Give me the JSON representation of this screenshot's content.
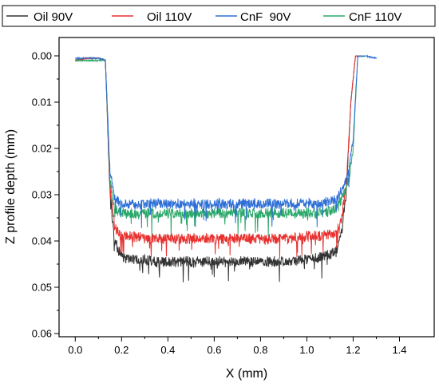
{
  "chart_data": {
    "type": "line",
    "xlabel": "X (mm)",
    "ylabel": "Z profile depth (mm)",
    "xlim": [
      -0.07,
      1.55
    ],
    "ylim": [
      0.0,
      0.06
    ],
    "y_inverted": true,
    "x_ticks": [
      "0.0",
      "0.2",
      "0.4",
      "0.6",
      "0.8",
      "1.0",
      "1.2",
      "1.4"
    ],
    "x_tick_values": [
      0.0,
      0.2,
      0.4,
      0.6,
      0.8,
      1.0,
      1.2,
      1.4
    ],
    "y_ticks": [
      "0.00",
      "0.01",
      "0.02",
      "0.03",
      "0.04",
      "0.05",
      "0.06"
    ],
    "y_tick_values": [
      0.0,
      0.01,
      0.02,
      0.03,
      0.04,
      0.05,
      0.06
    ],
    "legend_position": "top",
    "series": [
      {
        "name": "Oil 90V",
        "color": "#333333",
        "x": [
          0.0,
          0.05,
          0.1,
          0.13,
          0.15,
          0.17,
          0.2,
          0.25,
          0.3,
          0.35,
          0.4,
          0.5,
          0.6,
          0.7,
          0.8,
          0.9,
          1.0,
          1.05,
          1.1,
          1.13,
          1.15,
          1.17,
          1.19,
          1.21,
          1.23
        ],
        "y": [
          0.001,
          0.0005,
          0.0005,
          0.001,
          0.03,
          0.04,
          0.0435,
          0.044,
          0.044,
          0.0445,
          0.0445,
          0.0445,
          0.0445,
          0.0445,
          0.0445,
          0.0445,
          0.044,
          0.0435,
          0.043,
          0.042,
          0.038,
          0.03,
          0.01,
          0.0,
          0.0
        ]
      },
      {
        "name": "Oil 110V",
        "color": "#e8312f",
        "x": [
          0.0,
          0.05,
          0.1,
          0.13,
          0.15,
          0.17,
          0.2,
          0.25,
          0.3,
          0.35,
          0.4,
          0.5,
          0.6,
          0.7,
          0.8,
          0.9,
          1.0,
          1.05,
          1.1,
          1.13,
          1.15,
          1.17,
          1.19,
          1.21,
          1.23
        ],
        "y": [
          0.001,
          0.0005,
          0.0005,
          0.001,
          0.028,
          0.037,
          0.039,
          0.039,
          0.0395,
          0.0395,
          0.0395,
          0.0395,
          0.0395,
          0.0395,
          0.0395,
          0.0395,
          0.039,
          0.039,
          0.0385,
          0.038,
          0.035,
          0.028,
          0.01,
          0.0,
          0.0
        ]
      },
      {
        "name": "CnF  90V",
        "color": "#2e6fd6",
        "x": [
          0.0,
          0.05,
          0.1,
          0.13,
          0.15,
          0.17,
          0.2,
          0.25,
          0.3,
          0.35,
          0.4,
          0.5,
          0.6,
          0.7,
          0.8,
          0.9,
          1.0,
          1.05,
          1.1,
          1.13,
          1.15,
          1.18,
          1.2,
          1.22,
          1.25,
          1.3
        ],
        "y": [
          0.0005,
          0.0005,
          0.0005,
          0.001,
          0.025,
          0.031,
          0.032,
          0.032,
          0.032,
          0.0318,
          0.032,
          0.032,
          0.032,
          0.032,
          0.032,
          0.032,
          0.032,
          0.032,
          0.0315,
          0.031,
          0.029,
          0.025,
          0.018,
          0.0,
          0.0,
          0.0005
        ]
      },
      {
        "name": "CnF 110V",
        "color": "#2ca86a",
        "x": [
          0.0,
          0.05,
          0.1,
          0.13,
          0.15,
          0.17,
          0.2,
          0.25,
          0.3,
          0.35,
          0.4,
          0.5,
          0.6,
          0.7,
          0.8,
          0.9,
          1.0,
          1.05,
          1.1,
          1.13,
          1.15,
          1.18,
          1.2,
          1.22,
          1.25
        ],
        "y": [
          0.001,
          0.001,
          0.001,
          0.001,
          0.027,
          0.033,
          0.034,
          0.034,
          0.034,
          0.034,
          0.034,
          0.034,
          0.034,
          0.034,
          0.034,
          0.034,
          0.034,
          0.034,
          0.0335,
          0.033,
          0.031,
          0.027,
          0.02,
          0.0,
          0.0
        ]
      }
    ]
  }
}
